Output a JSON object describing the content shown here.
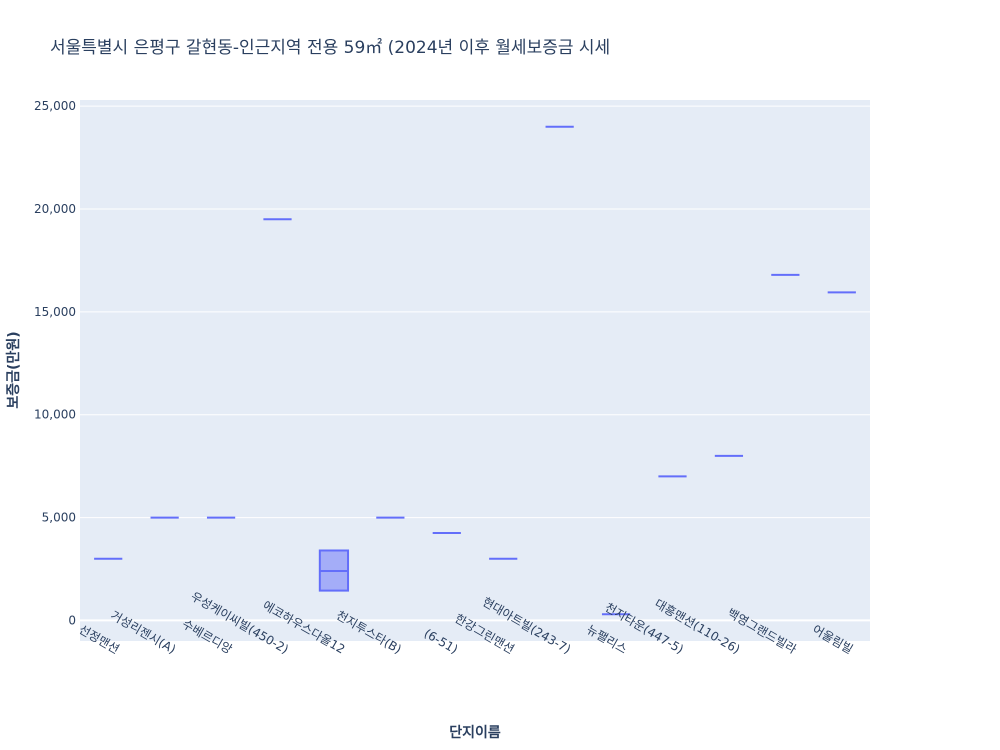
{
  "chart_data": {
    "type": "box",
    "title": "서울특별시 은평구 갈현동-인근지역 전용 59㎡ (2024년 이후 월세보증금 시세",
    "xlabel": "단지이름",
    "ylabel": "보증금(만원)",
    "ylim": [
      -1000,
      25300
    ],
    "yticks": [
      0,
      5000,
      10000,
      15000,
      20000,
      25000
    ],
    "ytick_labels": [
      "0",
      "5,000",
      "10,000",
      "15,000",
      "20,000",
      "25,000"
    ],
    "grid": true,
    "colors": {
      "box": "#636efa",
      "plot_bg": "#e5ecf6",
      "text": "#2a3f5f",
      "grid": "#ffffff"
    },
    "categories": [
      {
        "name": "선정맨션",
        "q1": 3000,
        "median": 3000,
        "q3": 3000
      },
      {
        "name": "거성리젠시(A)",
        "q1": 5000,
        "median": 5000,
        "q3": 5000
      },
      {
        "name": "수베르디앙",
        "q1": 5000,
        "median": 5000,
        "q3": 5000
      },
      {
        "name": "우성케이씨빌(450-2)",
        "q1": 19500,
        "median": 19500,
        "q3": 19500
      },
      {
        "name": "에코하우스다올12",
        "q1": 1450,
        "median": 2400,
        "q3": 3400
      },
      {
        "name": "천지투스타(B)",
        "q1": 5000,
        "median": 5000,
        "q3": 5000
      },
      {
        "name": "(6-51)",
        "q1": 4250,
        "median": 4250,
        "q3": 4250
      },
      {
        "name": "한강그린맨션",
        "q1": 3000,
        "median": 3000,
        "q3": 3000
      },
      {
        "name": "현대아트빌(243-7)",
        "q1": 24000,
        "median": 24000,
        "q3": 24000
      },
      {
        "name": "뉴팰리스",
        "q1": 300,
        "median": 300,
        "q3": 300
      },
      {
        "name": "천지타운(447-5)",
        "q1": 7000,
        "median": 7000,
        "q3": 7000
      },
      {
        "name": "대흥맨션(110-26)",
        "q1": 8000,
        "median": 8000,
        "q3": 8000
      },
      {
        "name": "백영그랜드빌라",
        "q1": 16800,
        "median": 16800,
        "q3": 16800
      },
      {
        "name": "어울림빌",
        "q1": 15950,
        "median": 15950,
        "q3": 15950
      }
    ]
  }
}
